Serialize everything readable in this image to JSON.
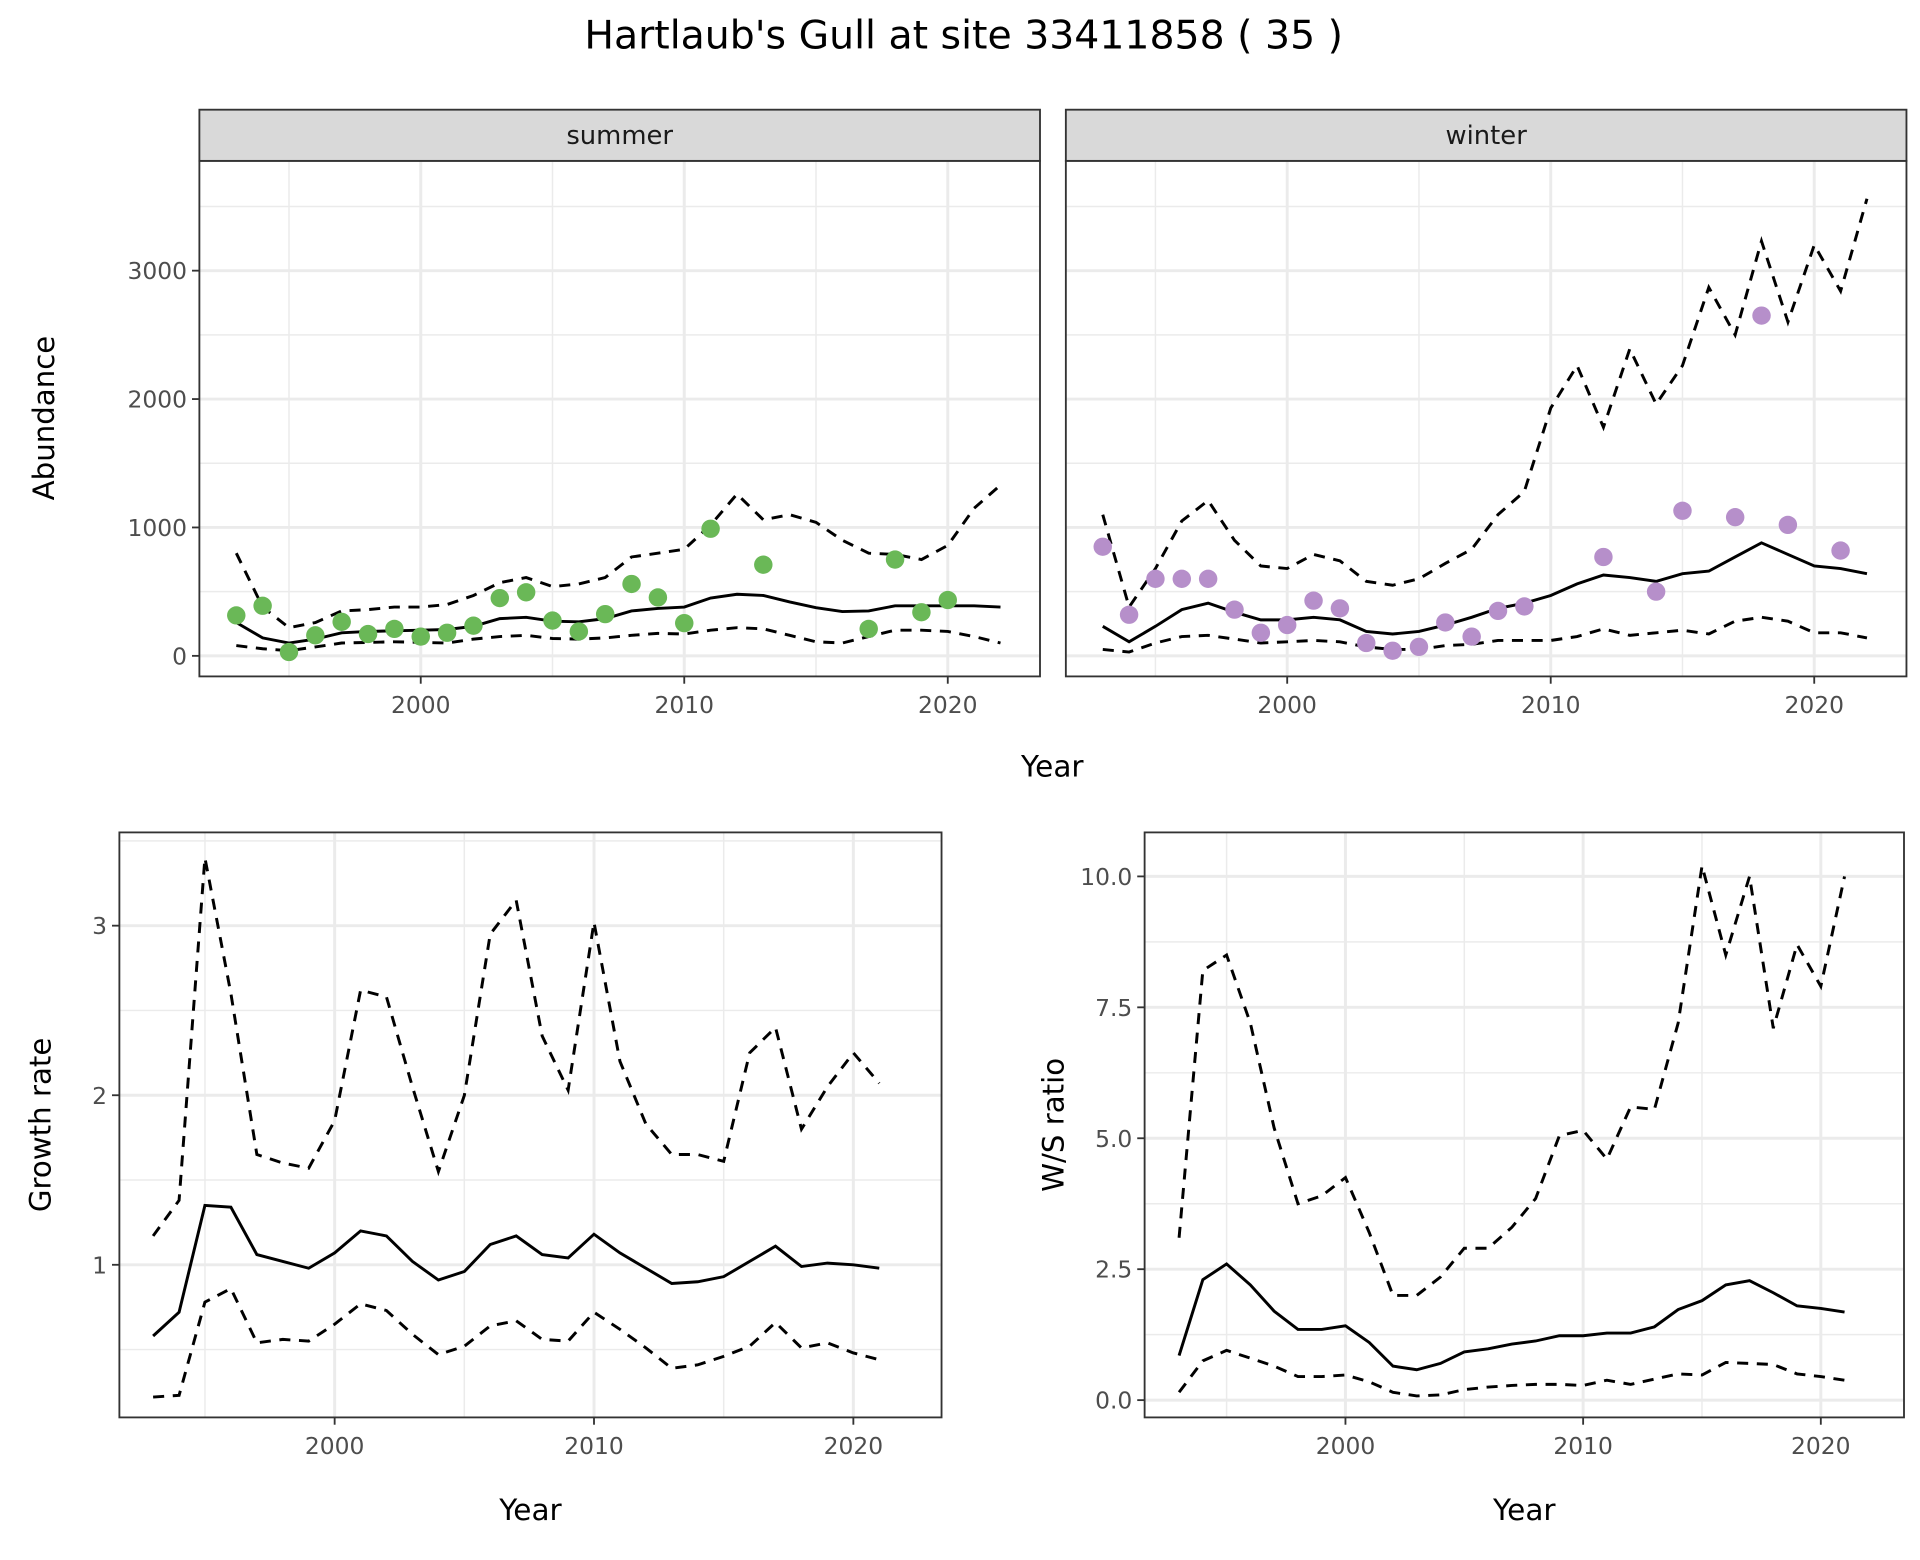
{
  "title": "Hartlaub's Gull at site 33411858 ( 35 )",
  "colors": {
    "summer_points": "#6ab857",
    "winter_points": "#b68fca",
    "strip_bg": "#d9d9d9",
    "grid": "#ebebeb"
  },
  "chart_data": [
    {
      "type": "line+scatter",
      "strip": "summer",
      "xlabel": "Year",
      "ylabel": "Abundance",
      "xlim": [
        1991.6,
        2023.5
      ],
      "ylim": [
        -160,
        3855
      ],
      "xticks": [
        "2000",
        "2010",
        "2020"
      ],
      "yticks": [
        "0",
        "1000",
        "2000",
        "3000"
      ],
      "grid": true,
      "line_years": [
        1993,
        1994,
        1995,
        1996,
        1997,
        1998,
        1999,
        2000,
        2001,
        2002,
        2003,
        2004,
        2005,
        2006,
        2007,
        2008,
        2009,
        2010,
        2011,
        2012,
        2013,
        2014,
        2015,
        2016,
        2017,
        2018,
        2019,
        2020,
        2021,
        2022
      ],
      "mean": [
        260,
        140,
        100,
        130,
        180,
        190,
        195,
        200,
        205,
        230,
        290,
        300,
        270,
        265,
        290,
        350,
        370,
        380,
        450,
        480,
        470,
        420,
        375,
        345,
        350,
        390,
        390,
        390,
        390,
        380
      ],
      "upper": [
        800,
        380,
        220,
        260,
        350,
        360,
        380,
        380,
        400,
        470,
        570,
        610,
        540,
        560,
        610,
        770,
        800,
        830,
        1020,
        1260,
        1060,
        1100,
        1040,
        900,
        800,
        790,
        750,
        860,
        1150,
        1330
      ],
      "lower": [
        80,
        55,
        40,
        70,
        100,
        105,
        110,
        105,
        100,
        130,
        150,
        160,
        135,
        130,
        140,
        160,
        175,
        170,
        200,
        220,
        210,
        160,
        110,
        100,
        150,
        200,
        200,
        190,
        150,
        100
      ],
      "points": {
        "x": [
          1993,
          1994,
          1995,
          1996,
          1997,
          1998,
          1999,
          2000,
          2001,
          2002,
          2003,
          2004,
          2005,
          2006,
          2007,
          2008,
          2009,
          2010,
          2011,
          2013,
          2017,
          2018,
          2019,
          2020
        ],
        "y": [
          315,
          390,
          30,
          160,
          265,
          170,
          210,
          150,
          180,
          235,
          450,
          495,
          275,
          190,
          325,
          560,
          455,
          255,
          990,
          710,
          210,
          750,
          340,
          435
        ]
      }
    },
    {
      "type": "line+scatter",
      "strip": "winter",
      "xlabel": "Year",
      "ylabel": "Abundance",
      "xlim": [
        1991.6,
        2023.5
      ],
      "ylim": [
        -160,
        3855
      ],
      "xticks": [
        "2000",
        "2010",
        "2020"
      ],
      "yticks": [
        "0",
        "1000",
        "2000",
        "3000"
      ],
      "grid": true,
      "line_years": [
        1993,
        1994,
        1995,
        1996,
        1997,
        1998,
        1999,
        2000,
        2001,
        2002,
        2003,
        2004,
        2005,
        2006,
        2007,
        2008,
        2009,
        2010,
        2011,
        2012,
        2013,
        2014,
        2015,
        2016,
        2017,
        2018,
        2019,
        2020,
        2021,
        2022
      ],
      "mean": [
        230,
        110,
        230,
        360,
        410,
        340,
        280,
        280,
        300,
        280,
        190,
        170,
        190,
        240,
        300,
        370,
        410,
        470,
        560,
        630,
        610,
        580,
        640,
        660,
        770,
        880,
        790,
        700,
        680,
        640
      ],
      "upper": [
        1100,
        380,
        680,
        1050,
        1210,
        900,
        700,
        680,
        790,
        740,
        580,
        550,
        600,
        720,
        830,
        1100,
        1280,
        1930,
        2260,
        1780,
        2390,
        1960,
        2260,
        2870,
        2500,
        3230,
        2600,
        3200,
        2840,
        3560
      ],
      "lower": [
        50,
        30,
        100,
        150,
        160,
        130,
        100,
        110,
        120,
        110,
        70,
        50,
        50,
        80,
        90,
        120,
        120,
        120,
        150,
        210,
        160,
        180,
        200,
        170,
        270,
        300,
        270,
        180,
        180,
        140
      ],
      "points": {
        "x": [
          1993,
          1994,
          1995,
          1996,
          1997,
          1998,
          1999,
          2000,
          2001,
          2002,
          2003,
          2004,
          2005,
          2006,
          2007,
          2008,
          2009,
          2012,
          2014,
          2015,
          2017,
          2018,
          2019,
          2021
        ],
        "y": [
          850,
          320,
          600,
          600,
          600,
          360,
          180,
          240,
          430,
          370,
          100,
          40,
          70,
          260,
          150,
          350,
          385,
          770,
          500,
          1130,
          1080,
          2650,
          1020,
          820
        ]
      }
    },
    {
      "type": "line",
      "xlabel": "Year",
      "ylabel": "Growth rate",
      "xlim": [
        1991.7,
        2023.4
      ],
      "ylim": [
        0.1,
        3.55
      ],
      "xticks": [
        "2000",
        "2010",
        "2020"
      ],
      "yticks": [
        "1",
        "2",
        "3"
      ],
      "grid": true,
      "line_years": [
        1993,
        1994,
        1995,
        1996,
        1997,
        1998,
        1999,
        2000,
        2001,
        2002,
        2003,
        2004,
        2005,
        2006,
        2007,
        2008,
        2009,
        2010,
        2011,
        2012,
        2013,
        2014,
        2015,
        2016,
        2017,
        2018,
        2019,
        2020,
        2021
      ],
      "mean": [
        0.58,
        0.72,
        1.35,
        1.34,
        1.06,
        1.02,
        0.98,
        1.07,
        1.2,
        1.17,
        1.02,
        0.91,
        0.96,
        1.12,
        1.17,
        1.06,
        1.04,
        1.18,
        1.07,
        0.98,
        0.89,
        0.9,
        0.93,
        1.02,
        1.11,
        0.99,
        1.01,
        1.0,
        0.98
      ],
      "upper": [
        1.17,
        1.38,
        3.4,
        2.6,
        1.65,
        1.6,
        1.57,
        1.85,
        2.62,
        2.58,
        2.05,
        1.55,
        2.0,
        2.95,
        3.15,
        2.35,
        2.03,
        3.02,
        2.2,
        1.83,
        1.65,
        1.65,
        1.61,
        2.25,
        2.4,
        1.8,
        2.05,
        2.25,
        2.07
      ],
      "lower": [
        0.22,
        0.23,
        0.78,
        0.86,
        0.54,
        0.56,
        0.55,
        0.65,
        0.77,
        0.73,
        0.59,
        0.47,
        0.52,
        0.64,
        0.67,
        0.56,
        0.55,
        0.72,
        0.62,
        0.51,
        0.39,
        0.41,
        0.46,
        0.52,
        0.66,
        0.51,
        0.54,
        0.48,
        0.44
      ]
    },
    {
      "type": "line",
      "xlabel": "Year",
      "ylabel": "W/S ratio",
      "xlim": [
        1991.55,
        2023.5
      ],
      "ylim": [
        -0.33,
        10.84
      ],
      "xticks": [
        "2000",
        "2010",
        "2020"
      ],
      "yticks": [
        "0.0",
        "2.5",
        "5.0",
        "7.5",
        "10.0"
      ],
      "grid": true,
      "line_years": [
        1993,
        1994,
        1995,
        1996,
        1997,
        1998,
        1999,
        2000,
        2001,
        2002,
        2003,
        2004,
        2005,
        2006,
        2007,
        2008,
        2009,
        2010,
        2011,
        2012,
        2013,
        2014,
        2015,
        2016,
        2017,
        2018,
        2019,
        2020,
        2021
      ],
      "mean": [
        0.85,
        2.3,
        2.6,
        2.2,
        1.7,
        1.35,
        1.35,
        1.42,
        1.1,
        0.65,
        0.58,
        0.7,
        0.92,
        0.98,
        1.07,
        1.13,
        1.23,
        1.23,
        1.28,
        1.28,
        1.4,
        1.73,
        1.9,
        2.2,
        2.28,
        2.05,
        1.8,
        1.75,
        1.68
      ],
      "upper": [
        3.1,
        8.2,
        8.5,
        7.2,
        5.2,
        3.75,
        3.9,
        4.25,
        3.2,
        2.0,
        2.0,
        2.35,
        2.9,
        2.9,
        3.3,
        3.85,
        5.05,
        5.15,
        4.6,
        5.6,
        5.55,
        7.2,
        10.2,
        8.5,
        10.0,
        7.1,
        8.7,
        7.9,
        10.0
      ],
      "lower": [
        0.15,
        0.75,
        0.95,
        0.8,
        0.65,
        0.45,
        0.45,
        0.48,
        0.35,
        0.15,
        0.08,
        0.1,
        0.2,
        0.25,
        0.28,
        0.3,
        0.3,
        0.28,
        0.38,
        0.3,
        0.4,
        0.5,
        0.48,
        0.72,
        0.7,
        0.68,
        0.5,
        0.45,
        0.38
      ]
    }
  ]
}
